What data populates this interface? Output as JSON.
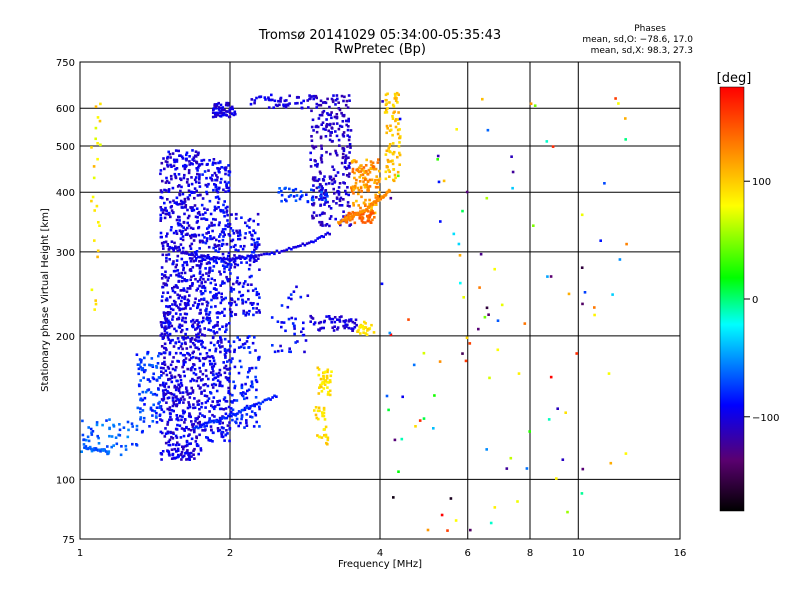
{
  "chart_data": {
    "type": "scatter",
    "title": "Tromsø 20141029 05:34:00-05:35:43",
    "subtitle": "RwPretec (Bp)",
    "xlabel": "Frequency [MHz]",
    "ylabel": "Stationary phase Virtual Height [km]",
    "x_scale": "log",
    "y_scale": "log",
    "xlim": [
      1,
      16
    ],
    "ylim": [
      75,
      750
    ],
    "x_ticks": [
      1,
      2,
      4,
      6,
      8,
      10,
      16
    ],
    "x_tick_labels": [
      "1",
      "2",
      "4",
      "6",
      "8",
      "10",
      "16"
    ],
    "y_ticks": [
      75,
      100,
      200,
      300,
      400,
      500,
      600,
      750
    ],
    "y_tick_labels": [
      "75",
      "100",
      "200",
      "300",
      "400",
      "500",
      "600",
      "750"
    ],
    "grid": true,
    "stats": {
      "heading": "Phases",
      "line1": "mean, sd,O: −78.6, 17.0",
      "line2": "mean, sd,X:  98.3, 27.3"
    },
    "colorbar": {
      "label": "[deg]",
      "range": [
        -180,
        180
      ],
      "ticks": [
        100,
        0,
        -100
      ],
      "tick_labels": [
        "100",
        "0",
        "−100"
      ]
    },
    "series": [
      {
        "traces": [
          {
            "f": [
              1.5,
              1.6,
              1.7,
              1.8,
              1.9,
              2.0,
              2.1,
              2.2,
              2.4,
              2.6,
              2.8,
              3.0,
              3.2
            ],
            "h": [
              310,
              300,
              295,
              292,
              290,
              290,
              291,
              293,
              297,
              303,
              310,
              318,
              330
            ],
            "p": -100
          },
          {
            "f": [
              3.3,
              3.4,
              3.5,
              3.6,
              3.7,
              3.8,
              3.9,
              4.0,
              4.1,
              4.2
            ],
            "h": [
              345,
              350,
              355,
              360,
              365,
              372,
              380,
              388,
              395,
              405
            ],
            "p": 125
          },
          {
            "f": [
              1.7,
              1.8,
              1.9,
              2.0,
              2.1,
              2.2,
              2.35,
              2.5
            ],
            "h": [
              128,
              131,
              133,
              136,
              139,
              142,
              146,
              150
            ],
            "p": -80
          },
          {
            "f": [
              1.02,
              1.06,
              1.1,
              1.15
            ],
            "h": [
              117,
              116,
              115,
              114
            ],
            "p": -65
          }
        ],
        "clusters": [
          {
            "f": [
              1.45,
              1.75
            ],
            "h": [
              110,
              490
            ],
            "p": [
              -115,
              -85
            ],
            "n": 900
          },
          {
            "f": [
              1.75,
              2.0
            ],
            "h": [
              120,
              470
            ],
            "p": [
              -110,
              -80
            ],
            "n": 500
          },
          {
            "f": [
              2.0,
              2.3
            ],
            "h": [
              220,
              360
            ],
            "p": [
              -110,
              -80
            ],
            "n": 150
          },
          {
            "f": [
              2.0,
              2.3
            ],
            "h": [
              128,
              200
            ],
            "p": [
              -100,
              -70
            ],
            "n": 100
          },
          {
            "f": [
              1.3,
              1.45
            ],
            "h": [
              125,
              185
            ],
            "p": [
              -90,
              -60
            ],
            "n": 90
          },
          {
            "f": [
              1.0,
              1.35
            ],
            "h": [
              112,
              135
            ],
            "p": [
              -80,
              -50
            ],
            "n": 60
          },
          {
            "f": [
              1.85,
              2.05
            ],
            "h": [
              575,
              615
            ],
            "p": [
              -115,
              -90
            ],
            "n": 60
          },
          {
            "f": [
              2.2,
              2.9
            ],
            "h": [
              600,
              640
            ],
            "p": [
              -110,
              -90
            ],
            "n": 50
          },
          {
            "f": [
              2.9,
              3.5
            ],
            "h": [
              340,
              640
            ],
            "p": [
              -120,
              -95
            ],
            "n": 280
          },
          {
            "f": [
              3.5,
              4.0
            ],
            "h": [
              360,
              470
            ],
            "p": [
              100,
              140
            ],
            "n": 130
          },
          {
            "f": [
              3.4,
              3.9
            ],
            "h": [
              345,
              365
            ],
            "p": [
              130,
              150
            ],
            "n": 60
          },
          {
            "f": [
              4.1,
              4.4
            ],
            "h": [
              420,
              650
            ],
            "p": [
              90,
              115
            ],
            "n": 80
          },
          {
            "f": [
              2.4,
              2.9
            ],
            "h": [
              185,
              260
            ],
            "p": [
              -105,
              -75
            ],
            "n": 40
          },
          {
            "f": [
              2.9,
              3.6
            ],
            "h": [
              205,
              220
            ],
            "p": [
              -115,
              -95
            ],
            "n": 55
          },
          {
            "f": [
              3.6,
              3.9
            ],
            "h": [
              200,
              215
            ],
            "p": [
              80,
              100
            ],
            "n": 25
          },
          {
            "f": [
              3.0,
              3.2
            ],
            "h": [
              150,
              172
            ],
            "p": [
              80,
              105
            ],
            "n": 40
          },
          {
            "f": [
              2.95,
              3.15
            ],
            "h": [
              118,
              142
            ],
            "p": [
              80,
              105
            ],
            "n": 30
          },
          {
            "f": [
              2.5,
              3.2
            ],
            "h": [
              380,
              410
            ],
            "p": [
              -90,
              -60
            ],
            "n": 40
          },
          {
            "f": [
              1.05,
              1.1
            ],
            "h": [
              220,
              620
            ],
            "p": [
              70,
              110
            ],
            "n": 25
          },
          {
            "f": [
              4.0,
              12.5
            ],
            "h": [
              78,
              650
            ],
            "p": [
              -180,
              180
            ],
            "n": 110
          }
        ]
      }
    ]
  }
}
